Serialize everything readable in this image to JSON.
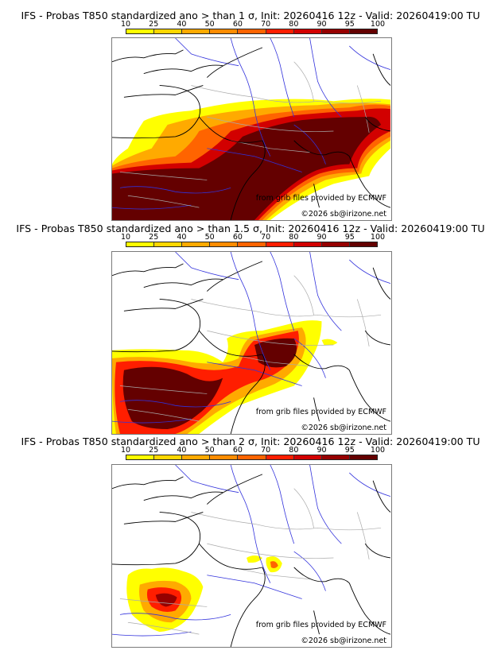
{
  "colorbar": {
    "ticks": [
      "10",
      "25",
      "40",
      "50",
      "60",
      "70",
      "80",
      "90",
      "95",
      "100"
    ],
    "colors": [
      "#ffff00",
      "#ffd700",
      "#ffaa00",
      "#ff8c00",
      "#ff6400",
      "#ff1e00",
      "#d20000",
      "#960000",
      "#640000"
    ]
  },
  "panels": [
    {
      "title": "IFS - Probas T850  standardized ano > than 1 σ, Init: 20260416 12z - Valid: 20260419:00 TU",
      "credit_source": "from grib files provided by ECMWF",
      "credit_copyright": "©2026 sb@irizone.net"
    },
    {
      "title": "IFS - Probas T850  standardized ano > than 1.5 σ, Init: 20260416 12z - Valid: 20260419:00 TU",
      "credit_source": "from grib files provided by ECMWF",
      "credit_copyright": "©2026 sb@irizone.net"
    },
    {
      "title": "IFS - Probas T850  standardized ano > than 2 σ, Init: 20260416 12z - Valid: 20260419:00 TU",
      "credit_source": "from grib files provided by ECMWF",
      "credit_copyright": "©2026 sb@irizone.net"
    }
  ],
  "map_colors": {
    "coast": "#000000",
    "rivers": "#3232dc",
    "borders": "#aaaaaa"
  }
}
